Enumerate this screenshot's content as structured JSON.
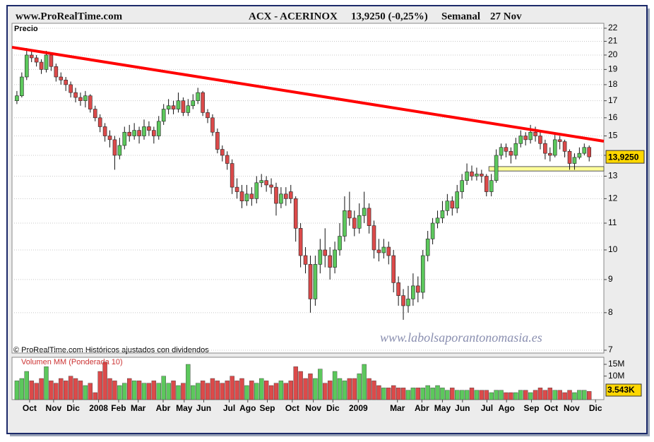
{
  "header": {
    "site": "www.ProRealTime.com",
    "instrument": "ACX - ACERINOX",
    "quote": "13,9250 (-0,25%)",
    "period": "Semanal",
    "date": "27 Nov"
  },
  "chart_data": [
    {
      "type": "candlestick",
      "title": "Precio",
      "open": [
        17.0,
        17.3,
        18.5,
        20.0,
        19.8,
        19.5,
        19.0,
        20.0,
        19.2,
        18.5,
        18.3,
        18.0,
        17.5,
        17.2,
        17.0,
        17.3,
        16.5,
        16.0,
        15.5,
        15.0,
        14.8,
        14.0,
        14.5,
        15.2,
        15.0,
        15.3,
        15.0,
        15.5,
        15.3,
        15.0,
        15.8,
        16.5,
        16.7,
        16.5,
        17.0,
        16.3,
        16.7,
        17.0,
        17.5,
        16.3,
        16.0,
        15.2,
        14.3,
        14.0,
        13.6,
        12.5,
        12.3,
        11.9,
        12.2,
        12.0,
        12.7,
        12.8,
        12.6,
        12.5,
        11.8,
        12.2,
        12.3,
        12.0,
        10.8,
        9.8,
        9.5,
        8.4,
        9.5,
        10.0,
        9.8,
        9.4,
        10.0,
        10.5,
        11.5,
        11.2,
        10.8,
        11.3,
        11.6,
        10.9,
        10.0,
        9.9,
        10.1,
        9.8,
        8.9,
        8.5,
        8.2,
        8.4,
        8.8,
        8.6,
        9.8,
        10.4,
        11.0,
        11.2,
        11.5,
        11.9,
        11.6,
        12.3,
        12.8,
        13.2,
        13.0,
        13.1,
        13.0,
        12.3,
        12.8,
        14.0,
        14.4,
        14.2,
        14.0,
        14.6,
        15.0,
        14.8,
        15.2,
        15.0,
        14.6,
        14.1,
        14.0,
        14.8,
        14.7,
        14.2,
        13.6,
        13.9,
        14.1,
        14.4
      ],
      "high": [
        17.6,
        18.8,
        20.5,
        20.3,
        20.0,
        19.7,
        20.3,
        20.2,
        19.4,
        18.8,
        18.5,
        18.2,
        17.8,
        17.5,
        17.6,
        17.4,
        16.7,
        16.2,
        15.7,
        15.3,
        15.0,
        14.9,
        15.5,
        15.6,
        15.7,
        15.5,
        15.9,
        15.8,
        15.5,
        16.1,
        16.8,
        17.1,
        17.0,
        17.5,
        17.2,
        17.1,
        17.4,
        17.8,
        17.6,
        16.5,
        16.2,
        15.4,
        14.5,
        14.2,
        13.8,
        12.9,
        12.6,
        12.6,
        12.5,
        13.0,
        13.1,
        13.0,
        12.9,
        12.7,
        12.5,
        12.5,
        12.6,
        12.1,
        11.0,
        10.1,
        9.8,
        9.8,
        10.4,
        10.8,
        10.1,
        10.3,
        11.0,
        12.1,
        12.3,
        11.5,
        11.8,
        12.3,
        11.8,
        11.1,
        10.4,
        10.4,
        10.3,
        10.0,
        9.1,
        8.7,
        8.8,
        9.2,
        9.1,
        10.0,
        10.7,
        11.2,
        11.5,
        11.9,
        12.2,
        12.1,
        12.6,
        13.1,
        13.6,
        13.5,
        13.4,
        13.3,
        13.1,
        13.1,
        14.3,
        14.6,
        14.6,
        14.4,
        14.9,
        15.3,
        15.2,
        15.6,
        15.5,
        15.2,
        14.8,
        14.4,
        15.1,
        15.0,
        14.8,
        14.3,
        14.1,
        14.4,
        14.6,
        14.5
      ],
      "low": [
        16.8,
        17.2,
        18.3,
        19.5,
        19.2,
        18.7,
        18.8,
        18.9,
        18.2,
        18.0,
        17.6,
        17.2,
        16.9,
        16.7,
        16.6,
        16.3,
        15.8,
        15.2,
        14.7,
        14.4,
        13.3,
        13.8,
        14.3,
        14.7,
        14.8,
        14.6,
        14.8,
        15.0,
        14.6,
        14.8,
        15.6,
        16.2,
        16.2,
        16.3,
        16.1,
        16.1,
        16.5,
        16.8,
        16.1,
        15.7,
        15.0,
        14.1,
        13.7,
        13.3,
        12.2,
        12.0,
        11.6,
        11.7,
        11.7,
        11.8,
        12.5,
        12.3,
        12.2,
        11.3,
        11.6,
        11.7,
        11.8,
        10.3,
        9.4,
        9.2,
        8.0,
        8.2,
        9.2,
        9.4,
        9.0,
        9.2,
        9.8,
        10.3,
        10.9,
        10.5,
        10.6,
        11.0,
        10.6,
        9.7,
        9.6,
        9.7,
        9.5,
        8.6,
        8.2,
        7.8,
        8.0,
        8.2,
        8.3,
        8.4,
        9.6,
        10.2,
        10.8,
        11.0,
        11.3,
        11.3,
        11.4,
        12.0,
        12.6,
        12.8,
        12.8,
        12.7,
        12.1,
        12.1,
        12.7,
        13.8,
        13.9,
        13.6,
        13.8,
        14.4,
        14.5,
        14.6,
        14.7,
        14.3,
        13.8,
        13.7,
        13.9,
        14.3,
        13.9,
        13.3,
        13.3,
        13.8,
        14.0,
        13.7
      ],
      "close": [
        17.3,
        18.5,
        20.0,
        19.8,
        19.5,
        19.0,
        20.0,
        19.2,
        18.5,
        18.3,
        18.0,
        17.5,
        17.2,
        17.0,
        17.3,
        16.5,
        16.0,
        15.5,
        15.0,
        14.8,
        14.0,
        14.5,
        15.2,
        15.0,
        15.3,
        15.0,
        15.5,
        15.3,
        15.0,
        15.8,
        16.5,
        16.7,
        16.5,
        17.0,
        16.3,
        16.7,
        17.0,
        17.5,
        16.3,
        16.0,
        15.2,
        14.3,
        14.0,
        13.6,
        12.5,
        12.3,
        11.9,
        12.2,
        12.0,
        12.7,
        12.8,
        12.6,
        12.5,
        11.8,
        12.2,
        12.0,
        12.0,
        10.8,
        9.8,
        9.5,
        8.4,
        9.5,
        10.0,
        9.8,
        9.4,
        10.0,
        10.5,
        11.5,
        11.2,
        10.8,
        11.3,
        11.6,
        10.9,
        10.0,
        9.9,
        10.1,
        9.8,
        8.9,
        8.5,
        8.2,
        8.4,
        8.8,
        8.6,
        9.8,
        10.4,
        11.0,
        11.2,
        11.5,
        11.9,
        11.6,
        12.3,
        12.8,
        13.2,
        13.0,
        13.1,
        13.0,
        12.3,
        12.8,
        14.0,
        14.4,
        14.2,
        14.0,
        14.6,
        15.0,
        14.8,
        15.2,
        15.0,
        14.6,
        14.1,
        14.0,
        14.8,
        14.7,
        14.2,
        13.6,
        13.9,
        14.1,
        14.4,
        13.925
      ],
      "up_color": "#5cc85c",
      "down_color": "#dc4a4a",
      "log_scale": true,
      "grid": true,
      "xlim": [
        -1,
        120
      ],
      "ylim": [
        7,
        22
      ],
      "yticks": [
        22,
        21,
        20,
        19,
        18,
        17,
        16,
        15,
        14,
        13,
        12,
        11,
        10,
        9,
        8,
        7
      ],
      "last_label": {
        "value": 13.925,
        "label": "13,9250"
      },
      "trendline": {
        "x": [
          -1,
          120
        ],
        "y": [
          20.56,
          14.72
        ],
        "color": "#ff0000"
      },
      "support_band": {
        "x": [
          96.5,
          120
        ],
        "y": [
          13.24,
          13.45
        ],
        "color": "#ffff99"
      },
      "footnote": "© ProRealTime.com  Históricos ajustados con dividendos",
      "watermark": "www.labolsaporantonomasia.es"
    },
    {
      "type": "volume",
      "title": "Volumen MM (Ponderada 10)",
      "values": [
        8,
        9,
        12,
        8,
        7,
        9,
        14,
        8,
        7,
        9,
        8,
        10,
        9,
        8,
        6,
        7,
        3,
        12,
        16,
        9,
        8,
        6,
        7,
        9,
        8,
        8,
        7,
        7,
        8,
        7,
        10,
        7,
        8,
        6,
        7,
        15,
        6,
        7,
        8,
        7,
        9,
        8,
        7,
        8,
        10,
        8,
        9,
        6,
        8,
        7,
        9,
        8,
        6,
        7,
        8,
        7,
        8,
        14,
        12,
        9,
        11,
        9,
        13,
        7,
        8,
        12,
        9,
        8,
        9,
        9,
        11,
        15,
        9,
        8,
        6,
        5,
        5,
        6,
        5,
        5,
        4,
        5,
        5,
        5,
        6,
        5,
        6,
        5,
        4,
        5,
        4,
        4,
        4,
        5,
        4,
        4,
        4,
        3,
        4,
        4,
        3,
        3,
        3,
        4,
        4,
        3,
        4,
        5,
        4,
        5,
        4,
        4,
        3,
        4,
        3,
        4,
        4,
        3.5
      ],
      "xlim": [
        -1,
        120
      ],
      "ylim": [
        0,
        18
      ],
      "yticks": [
        {
          "value": 15,
          "label": "15M"
        },
        {
          "value": 10,
          "label": "10M"
        }
      ],
      "last_label": "3.543K",
      "xticks": [
        {
          "value": 2.6,
          "label": "Oct"
        },
        {
          "value": 7.5,
          "label": "Nov"
        },
        {
          "value": 11.5,
          "label": "Dic"
        },
        {
          "value": 16.7,
          "label": "2008"
        },
        {
          "value": 20.8,
          "label": "Feb"
        },
        {
          "value": 24.8,
          "label": "Mar"
        },
        {
          "value": 29.9,
          "label": "Abr"
        },
        {
          "value": 34.2,
          "label": "May"
        },
        {
          "value": 38.2,
          "label": "Jun"
        },
        {
          "value": 43.4,
          "label": "Jul"
        },
        {
          "value": 47.2,
          "label": "Ago"
        },
        {
          "value": 51.2,
          "label": "Sep"
        },
        {
          "value": 56.3,
          "label": "Oct"
        },
        {
          "value": 60.6,
          "label": "Nov"
        },
        {
          "value": 64.6,
          "label": "Dic"
        },
        {
          "value": 69.8,
          "label": "2009"
        },
        {
          "value": 77.8,
          "label": "Mar"
        },
        {
          "value": 82.8,
          "label": "Abr"
        },
        {
          "value": 87.0,
          "label": "May"
        },
        {
          "value": 91.1,
          "label": "Jun"
        },
        {
          "value": 96.1,
          "label": "Jul"
        },
        {
          "value": 100.1,
          "label": "Ago"
        },
        {
          "value": 105.2,
          "label": "Sep"
        },
        {
          "value": 109.2,
          "label": "Oct"
        },
        {
          "value": 113.4,
          "label": "Nov"
        },
        {
          "value": 118.3,
          "label": "Dic"
        }
      ]
    }
  ]
}
